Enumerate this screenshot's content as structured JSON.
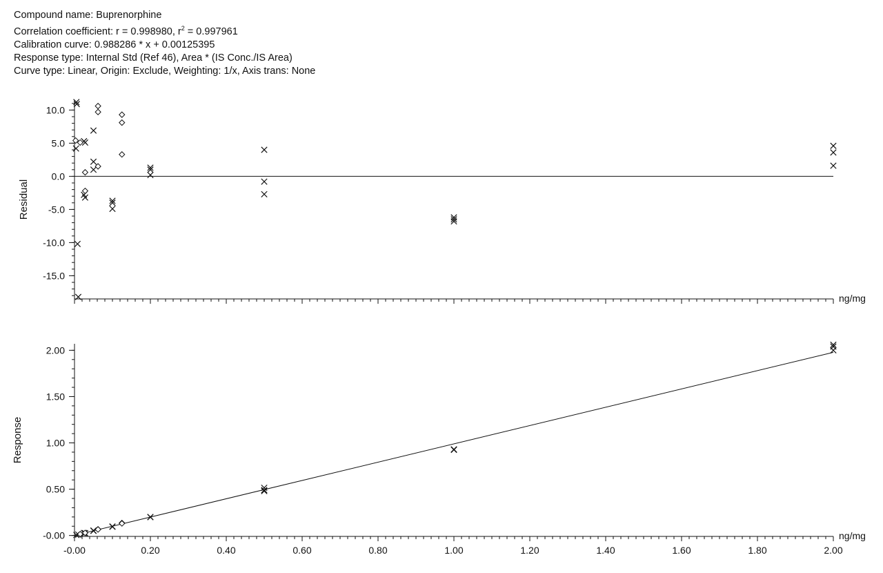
{
  "header": {
    "compound_name": "Compound name: Buprenorphine",
    "corr_prefix": "Correlation coefficient: r = 0.998980, r",
    "corr_sup": "2",
    "corr_suffix": " = 0.997961",
    "calibration_curve": "Calibration curve: 0.988286 * x + 0.00125395",
    "response_type": "Response type: Internal Std (Ref 46), Area * (IS Conc./IS Area)",
    "curve_type": "Curve type: Linear, Origin: Exclude, Weighting: 1/x, Axis trans: None"
  },
  "chart_data": [
    {
      "type": "scatter",
      "title": "",
      "xlabel": "ng/mg",
      "ylabel": "Residual",
      "xlim": [
        0,
        2.0
      ],
      "ylim": [
        -18.5,
        11.5
      ],
      "yticks": [
        10.0,
        5.0,
        0.0,
        -5.0,
        -10.0,
        -15.0
      ],
      "ytick_labels": [
        "10.0",
        "5.0",
        "0.0",
        "-5.0",
        "-10.0",
        "-15.0"
      ],
      "reference_line": 0,
      "grid": false,
      "series": [
        {
          "marker": "x",
          "points": [
            [
              0.005,
              11.2
            ],
            [
              0.006,
              10.9
            ],
            [
              0.004,
              4.2
            ],
            [
              0.008,
              -10.2
            ],
            [
              0.01,
              -18.2
            ],
            [
              0.025,
              5.3
            ],
            [
              0.028,
              5.1
            ],
            [
              0.025,
              -2.8
            ],
            [
              0.028,
              -3.2
            ],
            [
              0.05,
              6.9
            ],
            [
              0.05,
              2.2
            ],
            [
              0.05,
              1.0
            ],
            [
              0.1,
              -3.7
            ],
            [
              0.1,
              -4.0
            ],
            [
              0.1,
              -4.9
            ],
            [
              0.2,
              1.3
            ],
            [
              0.2,
              1.0
            ],
            [
              0.2,
              0.2
            ],
            [
              0.5,
              4.0
            ],
            [
              0.5,
              -0.8
            ],
            [
              0.5,
              -2.7
            ],
            [
              1.0,
              -6.2
            ],
            [
              1.0,
              -6.5
            ],
            [
              1.0,
              -6.8
            ],
            [
              2.0,
              4.6
            ],
            [
              2.0,
              3.6
            ],
            [
              2.0,
              1.6
            ]
          ]
        },
        {
          "marker": "diamond",
          "points": [
            [
              0.003,
              5.4
            ],
            [
              0.015,
              5.1
            ],
            [
              0.028,
              0.6
            ],
            [
              0.028,
              -2.2
            ],
            [
              0.062,
              10.6
            ],
            [
              0.062,
              9.7
            ],
            [
              0.062,
              1.5
            ],
            [
              0.125,
              9.3
            ],
            [
              0.125,
              8.1
            ],
            [
              0.125,
              3.3
            ]
          ]
        }
      ]
    },
    {
      "type": "scatter",
      "title": "",
      "xlabel": "ng/mg",
      "ylabel": "Response",
      "xlim": [
        0,
        2.0
      ],
      "ylim": [
        -0.01,
        2.07
      ],
      "yticks": [
        2.0,
        1.5,
        1.0,
        0.5,
        0.0
      ],
      "ytick_labels": [
        "2.00",
        "1.50",
        "1.00",
        "0.50",
        "-0.00"
      ],
      "xticks": [
        0.0,
        0.2,
        0.4,
        0.6,
        0.8,
        1.0,
        1.2,
        1.4,
        1.6,
        1.8,
        2.0
      ],
      "xtick_labels": [
        "-0.00",
        "0.20",
        "0.40",
        "0.60",
        "0.80",
        "1.00",
        "1.20",
        "1.40",
        "1.60",
        "1.80",
        "2.00"
      ],
      "fit_line": {
        "slope": 0.988286,
        "intercept": 0.00125395
      },
      "grid": false,
      "series": [
        {
          "marker": "x",
          "points": [
            [
              0.005,
              0.006
            ],
            [
              0.01,
              0.01
            ],
            [
              0.025,
              0.027
            ],
            [
              0.028,
              0.025
            ],
            [
              0.05,
              0.053
            ],
            [
              0.05,
              0.05
            ],
            [
              0.1,
              0.094
            ],
            [
              0.1,
              0.097
            ],
            [
              0.2,
              0.2
            ],
            [
              0.2,
              0.198
            ],
            [
              0.5,
              0.515
            ],
            [
              0.5,
              0.49
            ],
            [
              0.5,
              0.48
            ],
            [
              1.0,
              0.93
            ],
            [
              1.0,
              0.925
            ],
            [
              2.0,
              2.06
            ],
            [
              2.0,
              2.04
            ],
            [
              2.0,
              2.0
            ]
          ]
        },
        {
          "marker": "diamond",
          "points": [
            [
              0.015,
              0.015
            ],
            [
              0.028,
              0.028
            ],
            [
              0.062,
              0.067
            ],
            [
              0.062,
              0.065
            ],
            [
              0.125,
              0.135
            ],
            [
              0.125,
              0.13
            ]
          ]
        }
      ]
    }
  ]
}
